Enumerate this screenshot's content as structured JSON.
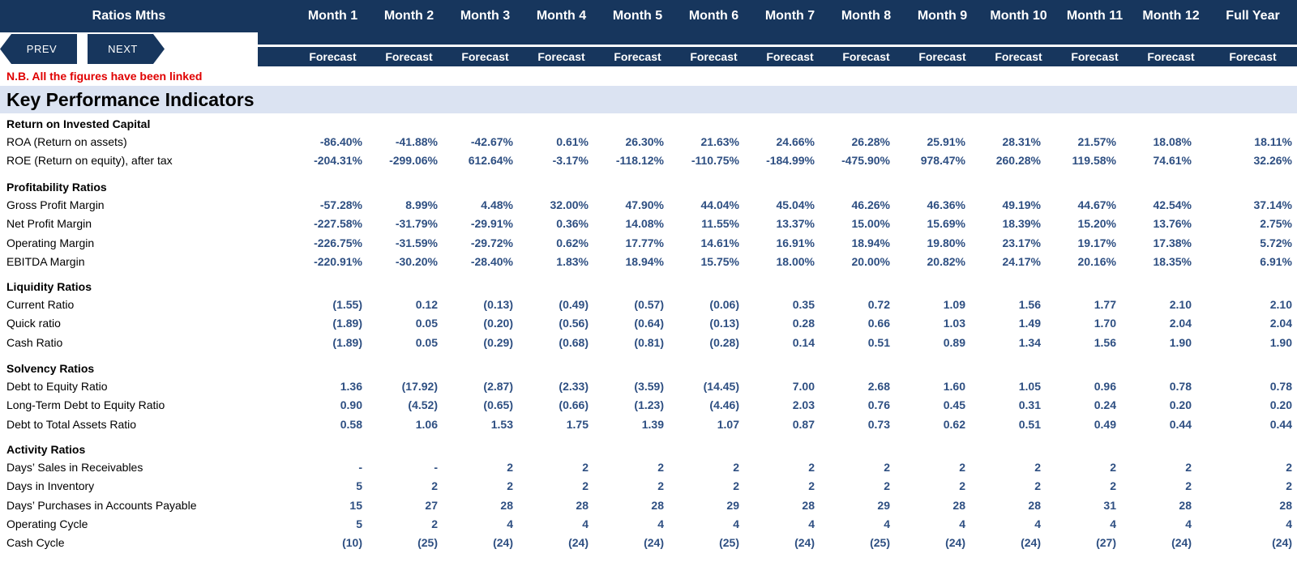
{
  "header": {
    "title": "Ratios Mths",
    "months": [
      "Month 1",
      "Month 2",
      "Month 3",
      "Month 4",
      "Month 5",
      "Month 6",
      "Month 7",
      "Month 8",
      "Month 9",
      "Month 10",
      "Month 11",
      "Month 12",
      "Full Year"
    ],
    "forecast_label": "Forecast"
  },
  "nav": {
    "prev_label": "PREV",
    "next_label": "NEXT"
  },
  "note": "N.B. All the figures have been linked",
  "kpi_title": "Key Performance Indicators",
  "sections": [
    {
      "title": "Return on Invested Capital",
      "rows": [
        {
          "label": "ROA (Return on assets)",
          "values": [
            "-86.40%",
            "-41.88%",
            "-42.67%",
            "0.61%",
            "26.30%",
            "21.63%",
            "24.66%",
            "26.28%",
            "25.91%",
            "28.31%",
            "21.57%",
            "18.08%",
            "18.11%"
          ]
        },
        {
          "label": "ROE (Return on equity), after tax",
          "values": [
            "-204.31%",
            "-299.06%",
            "612.64%",
            "-3.17%",
            "-118.12%",
            "-110.75%",
            "-184.99%",
            "-475.90%",
            "978.47%",
            "260.28%",
            "119.58%",
            "74.61%",
            "32.26%"
          ]
        }
      ]
    },
    {
      "title": "Profitability Ratios",
      "rows": [
        {
          "label": "Gross Profit Margin",
          "values": [
            "-57.28%",
            "8.99%",
            "4.48%",
            "32.00%",
            "47.90%",
            "44.04%",
            "45.04%",
            "46.26%",
            "46.36%",
            "49.19%",
            "44.67%",
            "42.54%",
            "37.14%"
          ]
        },
        {
          "label": "Net Profit Margin",
          "values": [
            "-227.58%",
            "-31.79%",
            "-29.91%",
            "0.36%",
            "14.08%",
            "11.55%",
            "13.37%",
            "15.00%",
            "15.69%",
            "18.39%",
            "15.20%",
            "13.76%",
            "2.75%"
          ]
        },
        {
          "label": "Operating Margin",
          "values": [
            "-226.75%",
            "-31.59%",
            "-29.72%",
            "0.62%",
            "17.77%",
            "14.61%",
            "16.91%",
            "18.94%",
            "19.80%",
            "23.17%",
            "19.17%",
            "17.38%",
            "5.72%"
          ]
        },
        {
          "label": "EBITDA Margin",
          "values": [
            "-220.91%",
            "-30.20%",
            "-28.40%",
            "1.83%",
            "18.94%",
            "15.75%",
            "18.00%",
            "20.00%",
            "20.82%",
            "24.17%",
            "20.16%",
            "18.35%",
            "6.91%"
          ]
        }
      ]
    },
    {
      "title": "Liquidity Ratios",
      "rows": [
        {
          "label": "Current Ratio",
          "values": [
            "(1.55)",
            "0.12",
            "(0.13)",
            "(0.49)",
            "(0.57)",
            "(0.06)",
            "0.35",
            "0.72",
            "1.09",
            "1.56",
            "1.77",
            "2.10",
            "2.10"
          ]
        },
        {
          "label": "Quick ratio",
          "values": [
            "(1.89)",
            "0.05",
            "(0.20)",
            "(0.56)",
            "(0.64)",
            "(0.13)",
            "0.28",
            "0.66",
            "1.03",
            "1.49",
            "1.70",
            "2.04",
            "2.04"
          ]
        },
        {
          "label": "Cash Ratio",
          "values": [
            "(1.89)",
            "0.05",
            "(0.29)",
            "(0.68)",
            "(0.81)",
            "(0.28)",
            "0.14",
            "0.51",
            "0.89",
            "1.34",
            "1.56",
            "1.90",
            "1.90"
          ]
        }
      ]
    },
    {
      "title": " Solvency Ratios",
      "rows": [
        {
          "label": "Debt to Equity Ratio",
          "values": [
            "1.36",
            "(17.92)",
            "(2.87)",
            "(2.33)",
            "(3.59)",
            "(14.45)",
            "7.00",
            "2.68",
            "1.60",
            "1.05",
            "0.96",
            "0.78",
            "0.78"
          ]
        },
        {
          "label": "Long-Term Debt to Equity Ratio",
          "values": [
            "0.90",
            "(4.52)",
            "(0.65)",
            "(0.66)",
            "(1.23)",
            "(4.46)",
            "2.03",
            "0.76",
            "0.45",
            "0.31",
            "0.24",
            "0.20",
            "0.20"
          ]
        },
        {
          "label": "Debt to Total Assets Ratio",
          "values": [
            "0.58",
            "1.06",
            "1.53",
            "1.75",
            "1.39",
            "1.07",
            "0.87",
            "0.73",
            "0.62",
            "0.51",
            "0.49",
            "0.44",
            "0.44"
          ]
        }
      ]
    },
    {
      "title": "Activity Ratios",
      "rows": [
        {
          "label": "Days’ Sales in Receivables",
          "values": [
            "-",
            "-",
            "2",
            "2",
            "2",
            "2",
            "2",
            "2",
            "2",
            "2",
            "2",
            "2",
            "2"
          ]
        },
        {
          "label": "Days in Inventory",
          "values": [
            "5",
            "2",
            "2",
            "2",
            "2",
            "2",
            "2",
            "2",
            "2",
            "2",
            "2",
            "2",
            "2"
          ]
        },
        {
          "label": "Days’ Purchases in Accounts Payable",
          "values": [
            "15",
            "27",
            "28",
            "28",
            "28",
            "29",
            "28",
            "29",
            "28",
            "28",
            "31",
            "28",
            "28"
          ]
        },
        {
          "label": "Operating Cycle",
          "values": [
            "5",
            "2",
            "4",
            "4",
            "4",
            "4",
            "4",
            "4",
            "4",
            "4",
            "4",
            "4",
            "4"
          ]
        },
        {
          "label": "Cash Cycle",
          "values": [
            "(10)",
            "(25)",
            "(24)",
            "(24)",
            "(24)",
            "(25)",
            "(24)",
            "(25)",
            "(24)",
            "(24)",
            "(27)",
            "(24)",
            "(24)"
          ]
        }
      ]
    }
  ]
}
